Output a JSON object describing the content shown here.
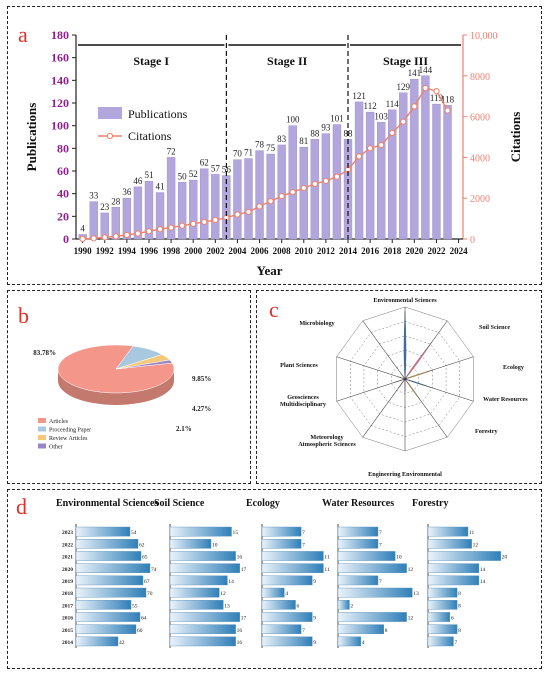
{
  "labels": {
    "a": "a",
    "b": "b",
    "c": "c",
    "d": "d"
  },
  "colors": {
    "publications": "#b3a6dc",
    "citations": "#f0806c",
    "left_axis": "#8e1f8e",
    "right_axis": "#f08070",
    "pie": [
      "#f4978a",
      "#a8c8e0",
      "#f5c978",
      "#9a86c4"
    ],
    "radar": [
      "#3b76b5",
      "#e8718e",
      "#f2c24a",
      "#3e86c8",
      "#e8a43a",
      "#6a9fd0",
      "#c6409a",
      "#53b08a",
      "#bfbfbf",
      "#cfcfcf",
      "#bbbbbb"
    ]
  },
  "chart_data": [
    {
      "panel": "a",
      "type": "bar",
      "title": "",
      "xlabel": "Year",
      "ylabel": "Publications",
      "y2label": "Citations",
      "ylim": [
        0,
        180
      ],
      "y2lim": [
        0,
        10000
      ],
      "yticks": [
        0,
        20,
        40,
        60,
        80,
        100,
        120,
        140,
        160,
        180
      ],
      "y2ticks": [
        "0",
        "2000",
        "4000",
        "6000",
        "8000",
        "10,000"
      ],
      "xticks": [
        "1990",
        "1992",
        "1994",
        "1996",
        "1998",
        "2000",
        "2002",
        "2004",
        "2006",
        "2008",
        "2010",
        "2012",
        "2014",
        "2016",
        "2018",
        "2020",
        "2022",
        "2024"
      ],
      "stages": [
        {
          "label": "Stage I",
          "from": 1989.4,
          "to": 2003
        },
        {
          "label": "Stage II",
          "from": 2003,
          "to": 2014
        },
        {
          "label": "Stage III",
          "from": 2014,
          "to": 2024.4
        }
      ],
      "legend": {
        "publications": "Publications",
        "citations": "Citations",
        "position": "left-center"
      },
      "years": [
        1990,
        1991,
        1992,
        1993,
        1994,
        1995,
        1996,
        1997,
        1998,
        1999,
        2000,
        2001,
        2002,
        2003,
        2004,
        2005,
        2006,
        2007,
        2008,
        2009,
        2010,
        2011,
        2012,
        2013,
        2014,
        2015,
        2016,
        2017,
        2018,
        2019,
        2020,
        2021,
        2022,
        2023
      ],
      "series": [
        {
          "name": "Publications",
          "values": [
            4,
            33,
            23,
            28,
            36,
            46,
            51,
            41,
            72,
            50,
            52,
            62,
            57,
            56,
            70,
            71,
            78,
            75,
            83,
            100,
            81,
            88,
            93,
            101,
            88,
            121,
            112,
            103,
            114,
            129,
            141,
            144,
            119,
            118
          ]
        },
        {
          "name": "Citations",
          "values": [
            0,
            30,
            80,
            130,
            200,
            270,
            380,
            480,
            560,
            650,
            740,
            840,
            930,
            1050,
            1200,
            1330,
            1600,
            1850,
            2100,
            2300,
            2500,
            2700,
            2850,
            3050,
            3400,
            4050,
            4450,
            4600,
            5200,
            5750,
            6500,
            7400,
            7250,
            6300
          ]
        }
      ]
    },
    {
      "panel": "b",
      "type": "pie",
      "categories": [
        "Articles",
        "Proceeding Paper",
        "Review Articles",
        "Other"
      ],
      "values": [
        83.78,
        9.85,
        4.27,
        2.1
      ],
      "slice_labels": [
        "83.78%",
        "9.85%",
        "4.27%",
        "2.1%"
      ],
      "legend_position": "bottom-left"
    },
    {
      "panel": "c",
      "type": "radar",
      "categories": [
        "Environmental Sciences",
        "Soil Science",
        "Ecology",
        "Water Resources",
        "Forestry",
        "Engineering Environmental",
        "Meteorology\nAtmospheric Sciences",
        "Geosciences\nMultidisciplinary",
        "Plant Sciences",
        "Microbiology"
      ],
      "values": [
        1600,
        1100,
        700,
        650,
        620,
        300,
        280,
        250,
        180,
        150
      ]
    },
    {
      "panel": "d",
      "type": "bar",
      "orientation": "horizontal",
      "years": [
        "2023",
        "2022",
        "2021",
        "2020",
        "2019",
        "2018",
        "2017",
        "2016",
        "2015",
        "2014"
      ],
      "series": [
        {
          "name": "Environmental Sciences",
          "values": [
            54,
            62,
            65,
            74,
            67,
            70,
            55,
            64,
            60,
            42
          ]
        },
        {
          "name": "Soil Science",
          "values": [
            15,
            10,
            16,
            17,
            14,
            12,
            13,
            17,
            16,
            16
          ]
        },
        {
          "name": "Ecology",
          "values": [
            7,
            7,
            11,
            11,
            9,
            4,
            6,
            9,
            7,
            9
          ]
        },
        {
          "name": "Water Resources",
          "values": [
            7,
            7,
            10,
            12,
            7,
            13,
            2,
            12,
            8,
            4
          ]
        },
        {
          "name": "Forestry",
          "values": [
            11,
            12,
            20,
            14,
            14,
            8,
            8,
            6,
            8,
            7
          ]
        }
      ],
      "max_scale": [
        80,
        20,
        12,
        14,
        22
      ]
    }
  ]
}
